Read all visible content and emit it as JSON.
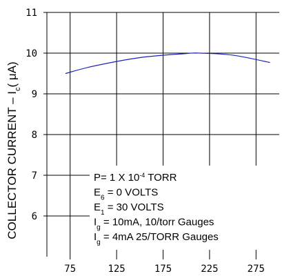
{
  "chart_data": {
    "type": "line",
    "title": "",
    "xlabel": "",
    "ylabel": {
      "prefix": "COLLECTOR CURRENT – I",
      "subscript": "c",
      "suffix": "( μA)"
    },
    "xlim": [
      50,
      300
    ],
    "ylim": [
      5,
      11
    ],
    "x_ticks": [
      75,
      125,
      175,
      225,
      275
    ],
    "y_ticks": [
      6,
      7,
      8,
      9,
      10,
      11
    ],
    "grid": true,
    "series": [
      {
        "color": "#1f1fbf",
        "x": [
          70,
          100,
          150,
          200,
          215,
          250,
          290
        ],
        "y": [
          9.5,
          9.68,
          9.89,
          9.99,
          10.0,
          9.95,
          9.77
        ]
      }
    ],
    "annotations": [
      {
        "parts": [
          {
            "t": "P= 1 X 10"
          },
          {
            "t": "-4",
            "s": "sup"
          },
          {
            "t": " TORR"
          }
        ]
      },
      {
        "parts": [
          {
            "t": "E"
          },
          {
            "t": "6",
            "s": "sub"
          },
          {
            "t": " = 0 VOLTS"
          }
        ]
      },
      {
        "parts": [
          {
            "t": "E"
          },
          {
            "t": "1",
            "s": "sub"
          },
          {
            "t": " = 30 VOLTS"
          }
        ]
      },
      {
        "parts": [
          {
            "t": "I"
          },
          {
            "t": "g",
            "s": "sub"
          },
          {
            "t": " = 10mA, 10/torr Gauges"
          }
        ]
      },
      {
        "parts": [
          {
            "t": "I"
          },
          {
            "t": "g",
            "s": "sub"
          },
          {
            "t": " = 4mA 25/TORR Gauges"
          }
        ]
      }
    ]
  }
}
